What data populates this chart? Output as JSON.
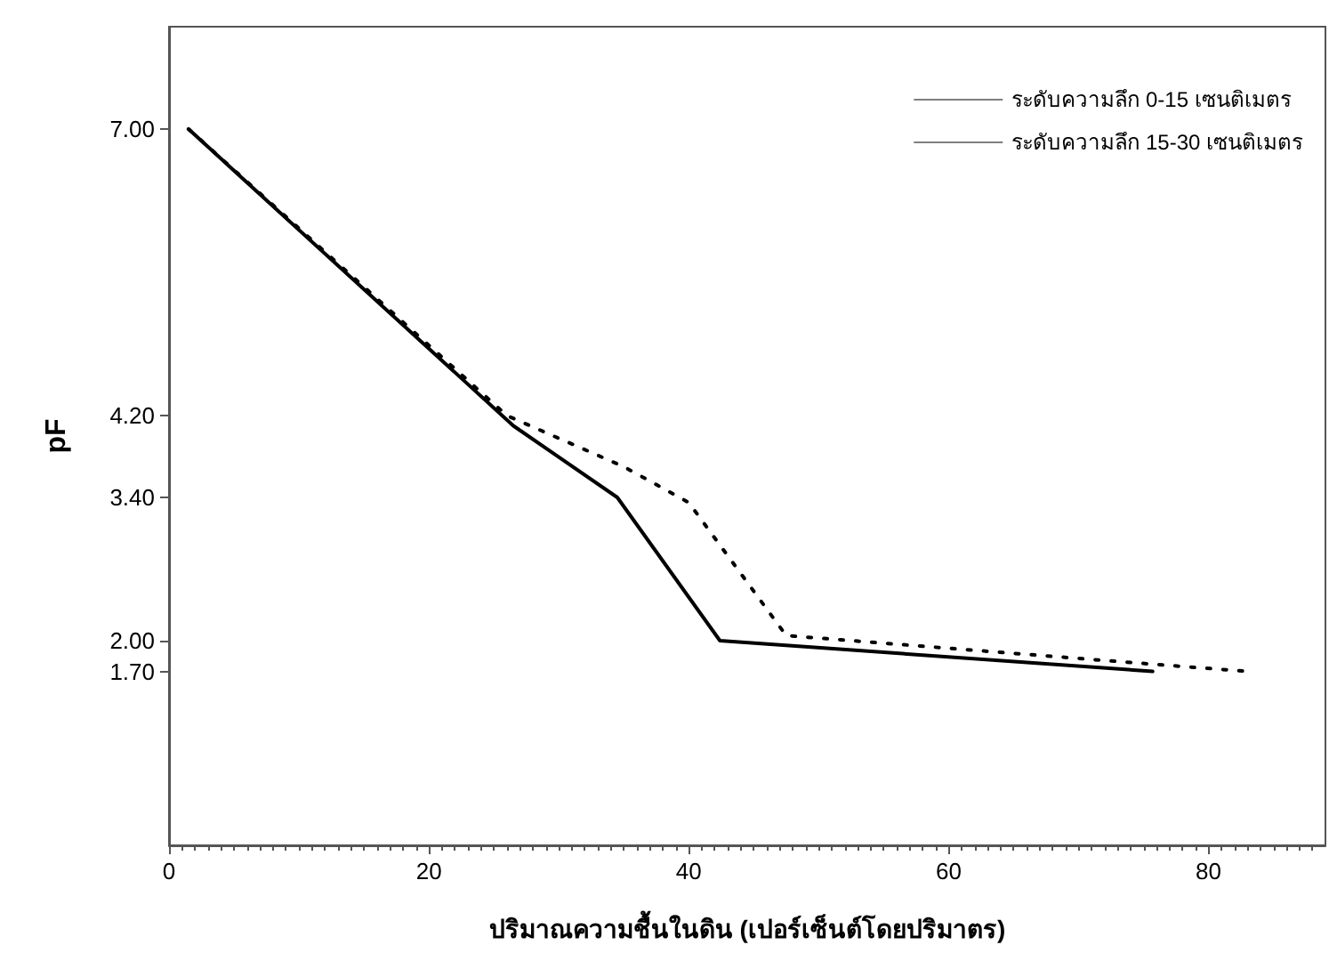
{
  "chart_data": {
    "type": "line",
    "xlabel": "ปริมาณความชื้นในดิน (เปอร์เซ็นต์โดยปริมาตร)",
    "ylabel": "pF",
    "xlim": [
      0,
      89
    ],
    "xticks": [
      0,
      20,
      40,
      60,
      80
    ],
    "ylim": [
      0,
      8
    ],
    "yticks": [
      {
        "value": 1.7,
        "label": "1.70"
      },
      {
        "value": 2,
        "label": "2.00"
      },
      {
        "value": 3.4,
        "label": "3.40"
      },
      {
        "value": 4.2,
        "label": "4.20"
      },
      {
        "value": 7,
        "label": "7.00"
      }
    ],
    "grid": false,
    "legend": "top right",
    "marker": "none",
    "series": [
      {
        "name": "ระดับความลึก 0-15 เซนติเมตร",
        "color": "#000000",
        "line_style": "solid",
        "x": [
          1.5,
          26.5,
          34.5,
          42.4,
          75.7
        ],
        "values": [
          7.0,
          4.1,
          3.4,
          2.0,
          1.7
        ]
      },
      {
        "name": "ระดับความลึก 15-30 เซนติเมตร",
        "color": "#000000",
        "line_style": "dotted",
        "x": [
          1.5,
          26,
          35,
          40,
          47.5,
          75.7,
          83
        ],
        "values": [
          7.0,
          4.2,
          3.7,
          3.35,
          2.05,
          1.77,
          1.7
        ]
      }
    ]
  }
}
